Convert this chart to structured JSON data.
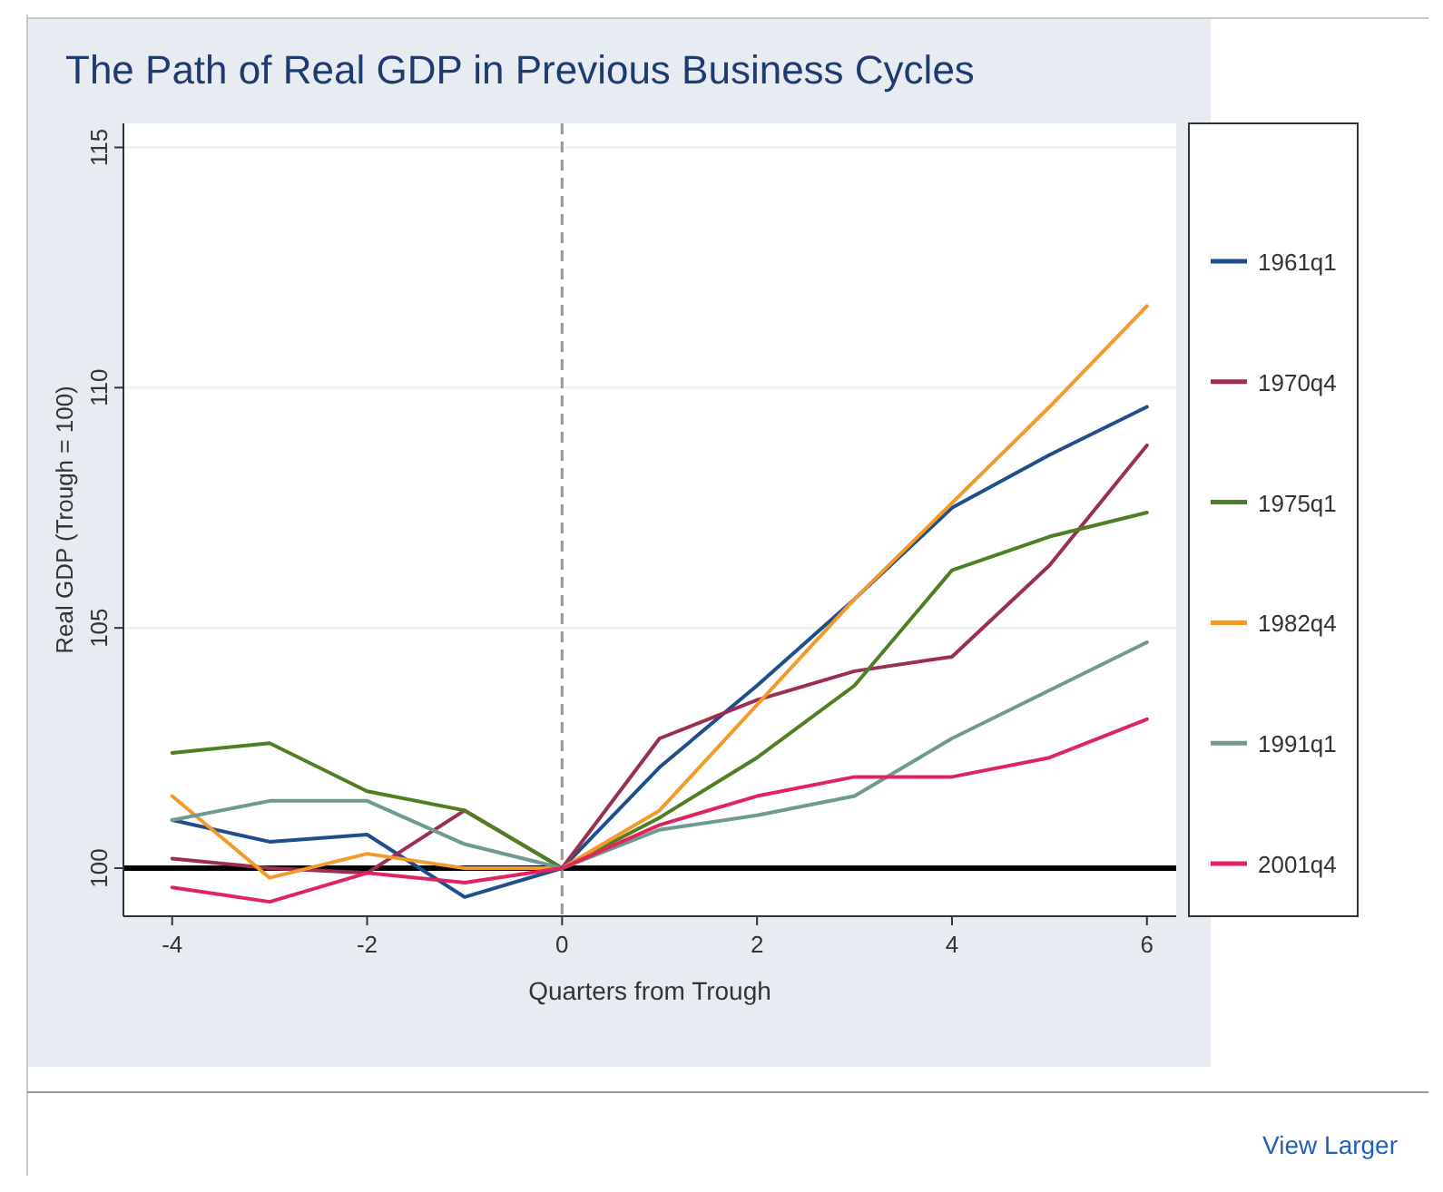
{
  "chart_data": {
    "type": "line",
    "title": "The Path of Real GDP in Previous Business Cycles",
    "xlabel": "Quarters from Trough",
    "ylabel": "Real GDP (Trough = 100)",
    "x": [
      -4,
      -3,
      -2,
      -1,
      0,
      1,
      2,
      3,
      4,
      5,
      6
    ],
    "series": [
      {
        "name": "1961q1",
        "color": "#1f4e8c",
        "values": [
          101.0,
          100.55,
          100.7,
          99.4,
          100,
          102.1,
          103.8,
          105.6,
          107.5,
          108.6,
          109.6
        ]
      },
      {
        "name": "1970q4",
        "color": "#9b2f4f",
        "values": [
          100.2,
          100.0,
          99.9,
          101.2,
          100,
          102.7,
          103.5,
          104.1,
          104.4,
          106.3,
          108.8
        ]
      },
      {
        "name": "1975q1",
        "color": "#4f7f22",
        "values": [
          102.4,
          102.6,
          101.6,
          101.2,
          100,
          101.05,
          102.3,
          103.8,
          106.2,
          106.9,
          107.4
        ]
      },
      {
        "name": "1982q4",
        "color": "#f39a2b",
        "values": [
          101.5,
          99.8,
          100.3,
          100.0,
          100,
          101.2,
          103.4,
          105.6,
          107.6,
          109.6,
          111.7
        ]
      },
      {
        "name": "1991q1",
        "color": "#6f9a94",
        "values": [
          101.0,
          101.4,
          101.4,
          100.5,
          100,
          100.8,
          101.1,
          101.5,
          102.7,
          103.7,
          104.7
        ]
      },
      {
        "name": "2001q4",
        "color": "#e0245e",
        "values": [
          99.6,
          99.3,
          99.9,
          99.7,
          100,
          100.9,
          101.5,
          101.9,
          101.9,
          102.3,
          103.1
        ]
      }
    ],
    "xlim": [
      -4.5,
      6.3
    ],
    "xticks": [
      -4,
      -2,
      0,
      2,
      4,
      6
    ],
    "ylim": [
      99,
      115.5
    ],
    "yticks": [
      100,
      105,
      110,
      115
    ],
    "grid": "y",
    "legend": "right",
    "marker": "none",
    "line_style": "solid",
    "ref_lines": [
      {
        "axis": "y",
        "value": 100,
        "color": "#000000",
        "line_style": "solid"
      },
      {
        "axis": "x",
        "value": 0,
        "color": "#999999",
        "line_style": "dashed"
      }
    ],
    "annotations": [
      "View Larger"
    ]
  }
}
